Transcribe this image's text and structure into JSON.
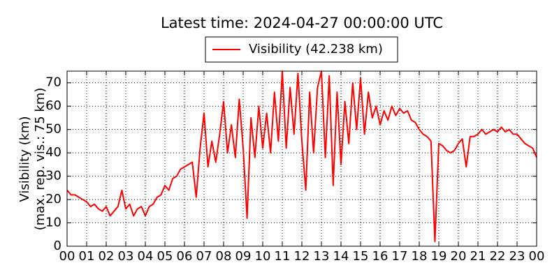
{
  "chart_data": {
    "type": "line",
    "title": "Latest time: 2024-04-27 00:00:00 UTC",
    "y_label_lines": [
      "Visibility (km)",
      "(max. rep. vis.: 75 km)"
    ],
    "x": [
      0,
      0.2,
      0.4,
      0.6,
      0.8,
      1,
      1.2,
      1.4,
      1.6,
      1.8,
      2,
      2.2,
      2.4,
      2.6,
      2.8,
      3,
      3.2,
      3.4,
      3.6,
      3.8,
      4,
      4.2,
      4.4,
      4.6,
      4.8,
      5,
      5.2,
      5.4,
      5.6,
      5.8,
      6,
      6.2,
      6.4,
      6.6,
      6.8,
      7,
      7.2,
      7.4,
      7.6,
      7.8,
      8,
      8.2,
      8.4,
      8.6,
      8.8,
      9,
      9.2,
      9.4,
      9.6,
      9.8,
      10,
      10.2,
      10.4,
      10.6,
      10.8,
      11,
      11.2,
      11.4,
      11.6,
      11.8,
      12,
      12.2,
      12.4,
      12.6,
      12.8,
      13,
      13.2,
      13.4,
      13.6,
      13.8,
      14,
      14.2,
      14.4,
      14.6,
      14.8,
      15,
      15.2,
      15.4,
      15.6,
      15.8,
      16,
      16.2,
      16.4,
      16.6,
      16.8,
      17,
      17.2,
      17.4,
      17.6,
      17.8,
      18,
      18.2,
      18.4,
      18.6,
      18.8,
      19,
      19.2,
      19.4,
      19.6,
      19.8,
      20,
      20.2,
      20.4,
      20.6,
      20.8,
      21,
      21.2,
      21.4,
      21.6,
      21.8,
      22,
      22.2,
      22.4,
      22.6,
      22.8,
      23,
      23.2,
      23.4,
      23.6,
      23.8,
      24
    ],
    "series": [
      {
        "name": "Visibility (42.238 km)",
        "color": "#ff0000",
        "values": [
          24,
          22,
          22,
          21,
          20,
          19,
          17,
          18,
          16,
          15,
          17,
          13,
          15,
          17,
          24,
          16,
          18,
          13,
          16,
          17,
          13,
          17,
          18,
          21,
          22,
          26,
          24,
          29,
          30,
          33,
          34,
          35,
          36,
          21,
          42,
          57,
          34,
          45,
          36,
          48,
          62,
          40,
          52,
          38,
          63,
          42,
          12,
          55,
          38,
          60,
          42,
          57,
          40,
          66,
          45,
          75,
          42,
          68,
          48,
          74,
          45,
          24,
          66,
          40,
          68,
          75,
          38,
          73,
          26,
          66,
          35,
          62,
          44,
          70,
          50,
          72,
          48,
          66,
          55,
          60,
          52,
          58,
          54,
          60,
          56,
          59,
          57,
          58,
          54,
          53,
          50,
          48,
          47,
          45,
          2,
          44,
          43,
          41,
          40,
          41,
          44,
          46,
          34,
          47,
          47,
          48,
          50,
          48,
          49,
          50,
          49,
          51,
          49,
          50,
          48,
          48,
          46,
          44,
          43,
          42,
          38
        ]
      }
    ],
    "xlim": [
      0,
      24
    ],
    "xticks": [
      {
        "value": 0,
        "label": "00"
      },
      {
        "value": 1,
        "label": "01"
      },
      {
        "value": 2,
        "label": "02"
      },
      {
        "value": 3,
        "label": "03"
      },
      {
        "value": 4,
        "label": "04"
      },
      {
        "value": 5,
        "label": "05"
      },
      {
        "value": 6,
        "label": "06"
      },
      {
        "value": 7,
        "label": "07"
      },
      {
        "value": 8,
        "label": "08"
      },
      {
        "value": 9,
        "label": "09"
      },
      {
        "value": 10,
        "label": "10"
      },
      {
        "value": 11,
        "label": "11"
      },
      {
        "value": 12,
        "label": "12"
      },
      {
        "value": 13,
        "label": "13"
      },
      {
        "value": 14,
        "label": "14"
      },
      {
        "value": 15,
        "label": "15"
      },
      {
        "value": 16,
        "label": "16"
      },
      {
        "value": 17,
        "label": "17"
      },
      {
        "value": 18,
        "label": "18"
      },
      {
        "value": 19,
        "label": "19"
      },
      {
        "value": 20,
        "label": "20"
      },
      {
        "value": 21,
        "label": "21"
      },
      {
        "value": 22,
        "label": "22"
      },
      {
        "value": 23,
        "label": "23"
      },
      {
        "value": 24,
        "label": "00"
      }
    ],
    "ylim": [
      0,
      75
    ],
    "yticks": [
      0,
      10,
      20,
      30,
      40,
      50,
      60,
      70
    ],
    "grid": true,
    "legend": "top"
  }
}
